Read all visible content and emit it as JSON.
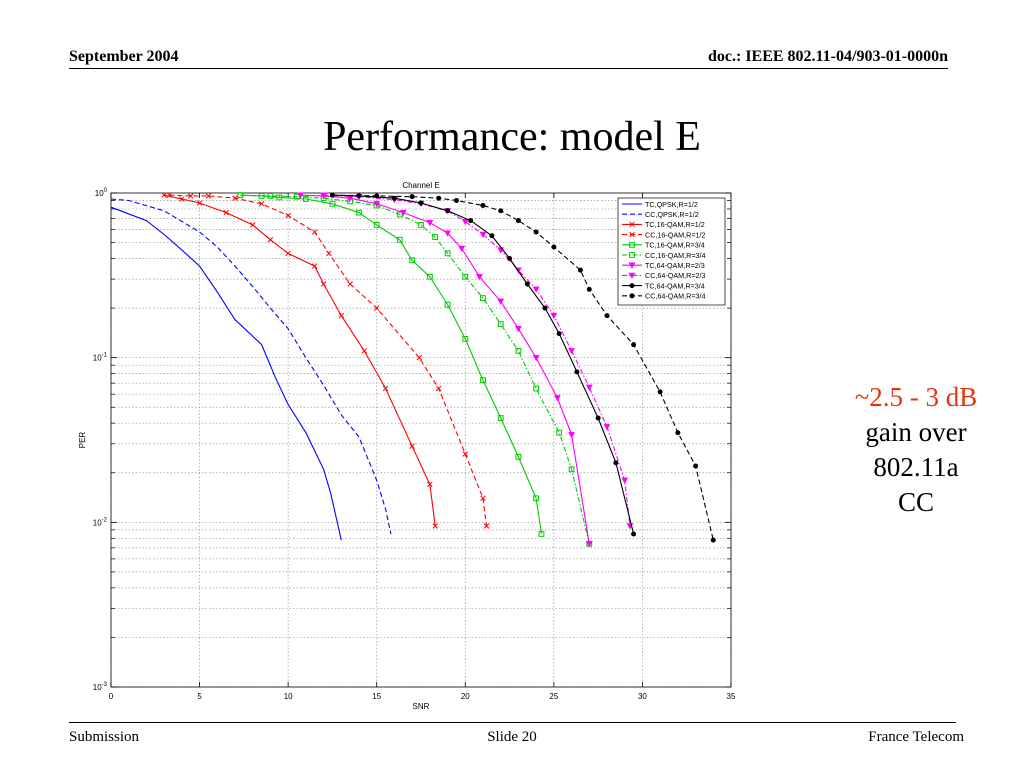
{
  "header": {
    "date": "September 2004",
    "doc": "doc.: IEEE 802.11-04/903-01-0000n"
  },
  "slide_title": "Performance: model E",
  "side_note": {
    "highlight": "~2.5 - 3 dB",
    "line2": "gain over",
    "line3": "802.11a",
    "line4": "CC"
  },
  "footer": {
    "left": "Submission",
    "center": "Slide 20",
    "right": "France Telecom"
  },
  "chart_data": {
    "type": "line",
    "title": "Channel E",
    "xlabel": "SNR",
    "ylabel": "PER",
    "xlim": [
      0,
      35
    ],
    "ylim": [
      0.001,
      1
    ],
    "y_scale": "log",
    "x_ticks": [
      0,
      5,
      10,
      15,
      20,
      25,
      30,
      35
    ],
    "y_ticks": [
      {
        "value": 1,
        "base": "10",
        "exp": "0"
      },
      {
        "value": 0.1,
        "base": "10",
        "exp": "-1"
      },
      {
        "value": 0.01,
        "base": "10",
        "exp": "-2"
      },
      {
        "value": 0.001,
        "base": "10",
        "exp": "-3"
      }
    ],
    "grid": true,
    "legend_position": "top-right",
    "series": [
      {
        "name": "TC,QPSK,R=1/2",
        "color": "#0000ff",
        "dash": "solid",
        "marker": "none",
        "points": [
          [
            0,
            0.82
          ],
          [
            2,
            0.68
          ],
          [
            3,
            0.56
          ],
          [
            4,
            0.45
          ],
          [
            5,
            0.36
          ],
          [
            6,
            0.25
          ],
          [
            7,
            0.17
          ],
          [
            8.5,
            0.12
          ],
          [
            9.3,
            0.075
          ],
          [
            10,
            0.052
          ],
          [
            11,
            0.035
          ],
          [
            12,
            0.021
          ],
          [
            12.4,
            0.015
          ],
          [
            13,
            0.0078
          ]
        ]
      },
      {
        "name": "CC,QPSK,R=1/2",
        "color": "#0000ff",
        "dash": "dashed",
        "marker": "none",
        "points": [
          [
            0,
            0.92
          ],
          [
            1,
            0.9
          ],
          [
            3,
            0.78
          ],
          [
            5,
            0.58
          ],
          [
            6,
            0.47
          ],
          [
            7,
            0.36
          ],
          [
            8,
            0.27
          ],
          [
            9,
            0.2
          ],
          [
            10,
            0.15
          ],
          [
            11,
            0.1
          ],
          [
            12,
            0.068
          ],
          [
            13,
            0.045
          ],
          [
            14,
            0.033
          ],
          [
            15,
            0.018
          ],
          [
            15.5,
            0.012
          ],
          [
            15.8,
            0.0085
          ]
        ]
      },
      {
        "name": "TC,16-QAM,R=1/2",
        "color": "#ff0000",
        "dash": "solid",
        "marker": "x",
        "points": [
          [
            3,
            0.97
          ],
          [
            4,
            0.92
          ],
          [
            5,
            0.87
          ],
          [
            6.5,
            0.76
          ],
          [
            8,
            0.64
          ],
          [
            9,
            0.52
          ],
          [
            10,
            0.43
          ],
          [
            11.5,
            0.36
          ],
          [
            12,
            0.28
          ],
          [
            13,
            0.18
          ],
          [
            14.3,
            0.11
          ],
          [
            15.5,
            0.065
          ],
          [
            17,
            0.029
          ],
          [
            18,
            0.017
          ],
          [
            18.3,
            0.0095
          ]
        ]
      },
      {
        "name": "CC,16-QAM,R=1/2",
        "color": "#ff0000",
        "dash": "dashed",
        "marker": "x",
        "points": [
          [
            3.3,
            0.97
          ],
          [
            4.5,
            0.96
          ],
          [
            5.5,
            0.96
          ],
          [
            7,
            0.93
          ],
          [
            8.5,
            0.86
          ],
          [
            10,
            0.73
          ],
          [
            11.5,
            0.58
          ],
          [
            12.3,
            0.43
          ],
          [
            13.5,
            0.28
          ],
          [
            15,
            0.2
          ],
          [
            17.4,
            0.1
          ],
          [
            18.5,
            0.065
          ],
          [
            20,
            0.026
          ],
          [
            21,
            0.014
          ],
          [
            21.2,
            0.0095
          ]
        ]
      },
      {
        "name": "TC,16-QAM,R=3/4",
        "color": "#00cc00",
        "dash": "solid",
        "marker": "square",
        "points": [
          [
            7.3,
            0.97
          ],
          [
            8.5,
            0.96
          ],
          [
            9.5,
            0.94
          ],
          [
            11,
            0.92
          ],
          [
            12.5,
            0.86
          ],
          [
            14,
            0.76
          ],
          [
            15,
            0.64
          ],
          [
            16.3,
            0.52
          ],
          [
            17,
            0.39
          ],
          [
            18,
            0.31
          ],
          [
            19,
            0.21
          ],
          [
            20,
            0.13
          ],
          [
            21,
            0.073
          ],
          [
            22,
            0.043
          ],
          [
            23,
            0.025
          ],
          [
            24,
            0.014
          ],
          [
            24.3,
            0.0085
          ]
        ]
      },
      {
        "name": "CC,16-QAM,R=3/4",
        "color": "#00cc00",
        "dash": "dashdot",
        "marker": "square",
        "points": [
          [
            7.3,
            0.97
          ],
          [
            9,
            0.96
          ],
          [
            10.5,
            0.95
          ],
          [
            12,
            0.93
          ],
          [
            13.5,
            0.89
          ],
          [
            15,
            0.84
          ],
          [
            16.3,
            0.74
          ],
          [
            17.5,
            0.64
          ],
          [
            18.3,
            0.54
          ],
          [
            19,
            0.43
          ],
          [
            20,
            0.31
          ],
          [
            21,
            0.23
          ],
          [
            22,
            0.16
          ],
          [
            23,
            0.11
          ],
          [
            24,
            0.065
          ],
          [
            25.3,
            0.035
          ],
          [
            26,
            0.021
          ],
          [
            27,
            0.0074
          ]
        ]
      },
      {
        "name": "TC,64-QAM,R=2/3",
        "color": "#ff00ff",
        "dash": "solid",
        "marker": "triangle",
        "points": [
          [
            10.7,
            0.97
          ],
          [
            12,
            0.96
          ],
          [
            13.5,
            0.93
          ],
          [
            15,
            0.86
          ],
          [
            16.5,
            0.76
          ],
          [
            18,
            0.66
          ],
          [
            19,
            0.57
          ],
          [
            19.8,
            0.46
          ],
          [
            20.8,
            0.31
          ],
          [
            22,
            0.22
          ],
          [
            23,
            0.15
          ],
          [
            24,
            0.1
          ],
          [
            25.2,
            0.057
          ],
          [
            26,
            0.034
          ],
          [
            27,
            0.0074
          ]
        ]
      },
      {
        "name": "CC,64-QAM,R=2/3",
        "color": "#ff00ff",
        "dash": "dashdot",
        "marker": "triangle",
        "points": [
          [
            12,
            0.97
          ],
          [
            14,
            0.95
          ],
          [
            16,
            0.91
          ],
          [
            17.5,
            0.86
          ],
          [
            19,
            0.78
          ],
          [
            20,
            0.67
          ],
          [
            21,
            0.56
          ],
          [
            22,
            0.45
          ],
          [
            23,
            0.34
          ],
          [
            24,
            0.26
          ],
          [
            25,
            0.18
          ],
          [
            26,
            0.11
          ],
          [
            27,
            0.066
          ],
          [
            28,
            0.038
          ],
          [
            29,
            0.018
          ],
          [
            29.3,
            0.0095
          ]
        ]
      },
      {
        "name": "TC,64-QAM,R=3/4",
        "color": "#000000",
        "dash": "solid",
        "marker": "circle",
        "points": [
          [
            12.5,
            0.97
          ],
          [
            14,
            0.96
          ],
          [
            16,
            0.93
          ],
          [
            17.5,
            0.87
          ],
          [
            19,
            0.78
          ],
          [
            20.3,
            0.68
          ],
          [
            21.5,
            0.55
          ],
          [
            22.5,
            0.4
          ],
          [
            23.5,
            0.28
          ],
          [
            24.5,
            0.2
          ],
          [
            25.3,
            0.14
          ],
          [
            26.3,
            0.082
          ],
          [
            27.5,
            0.043
          ],
          [
            28.5,
            0.023
          ],
          [
            29.5,
            0.0085
          ]
        ]
      },
      {
        "name": "CC,64-QAM,R=3/4",
        "color": "#000000",
        "dash": "dashed",
        "marker": "circle",
        "points": [
          [
            12.5,
            0.97
          ],
          [
            15,
            0.96
          ],
          [
            17,
            0.95
          ],
          [
            18.5,
            0.93
          ],
          [
            19.5,
            0.9
          ],
          [
            21,
            0.84
          ],
          [
            22,
            0.78
          ],
          [
            23,
            0.68
          ],
          [
            24,
            0.58
          ],
          [
            25,
            0.47
          ],
          [
            26.5,
            0.34
          ],
          [
            27,
            0.26
          ],
          [
            28,
            0.18
          ],
          [
            29.5,
            0.12
          ],
          [
            31,
            0.062
          ],
          [
            32,
            0.035
          ],
          [
            33,
            0.022
          ],
          [
            34,
            0.0078
          ]
        ]
      }
    ]
  }
}
